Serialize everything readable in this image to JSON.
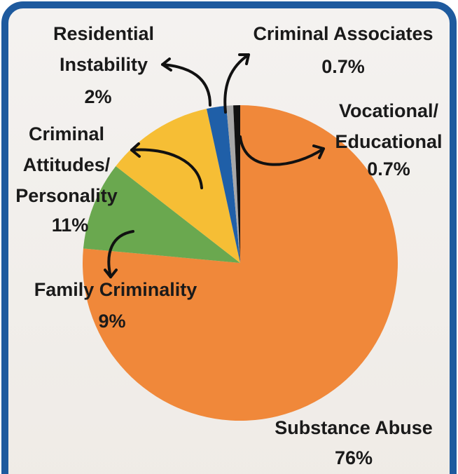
{
  "chart_data": {
    "type": "pie",
    "categories": [
      "Substance Abuse",
      "Family Criminality",
      "Criminal Attitudes/ Personality",
      "Residential Instability",
      "Criminal Associates",
      "Vocational/ Educational"
    ],
    "values": [
      76,
      9,
      11,
      2,
      0.7,
      0.7
    ],
    "value_labels": [
      "76%",
      "9%",
      "11%",
      "2%",
      "0.7%",
      "0.7%"
    ],
    "colors": [
      "#f0883a",
      "#6aa84f",
      "#f6be35",
      "#1f5fa8",
      "#a8a8a8",
      "#111111"
    ]
  }
}
